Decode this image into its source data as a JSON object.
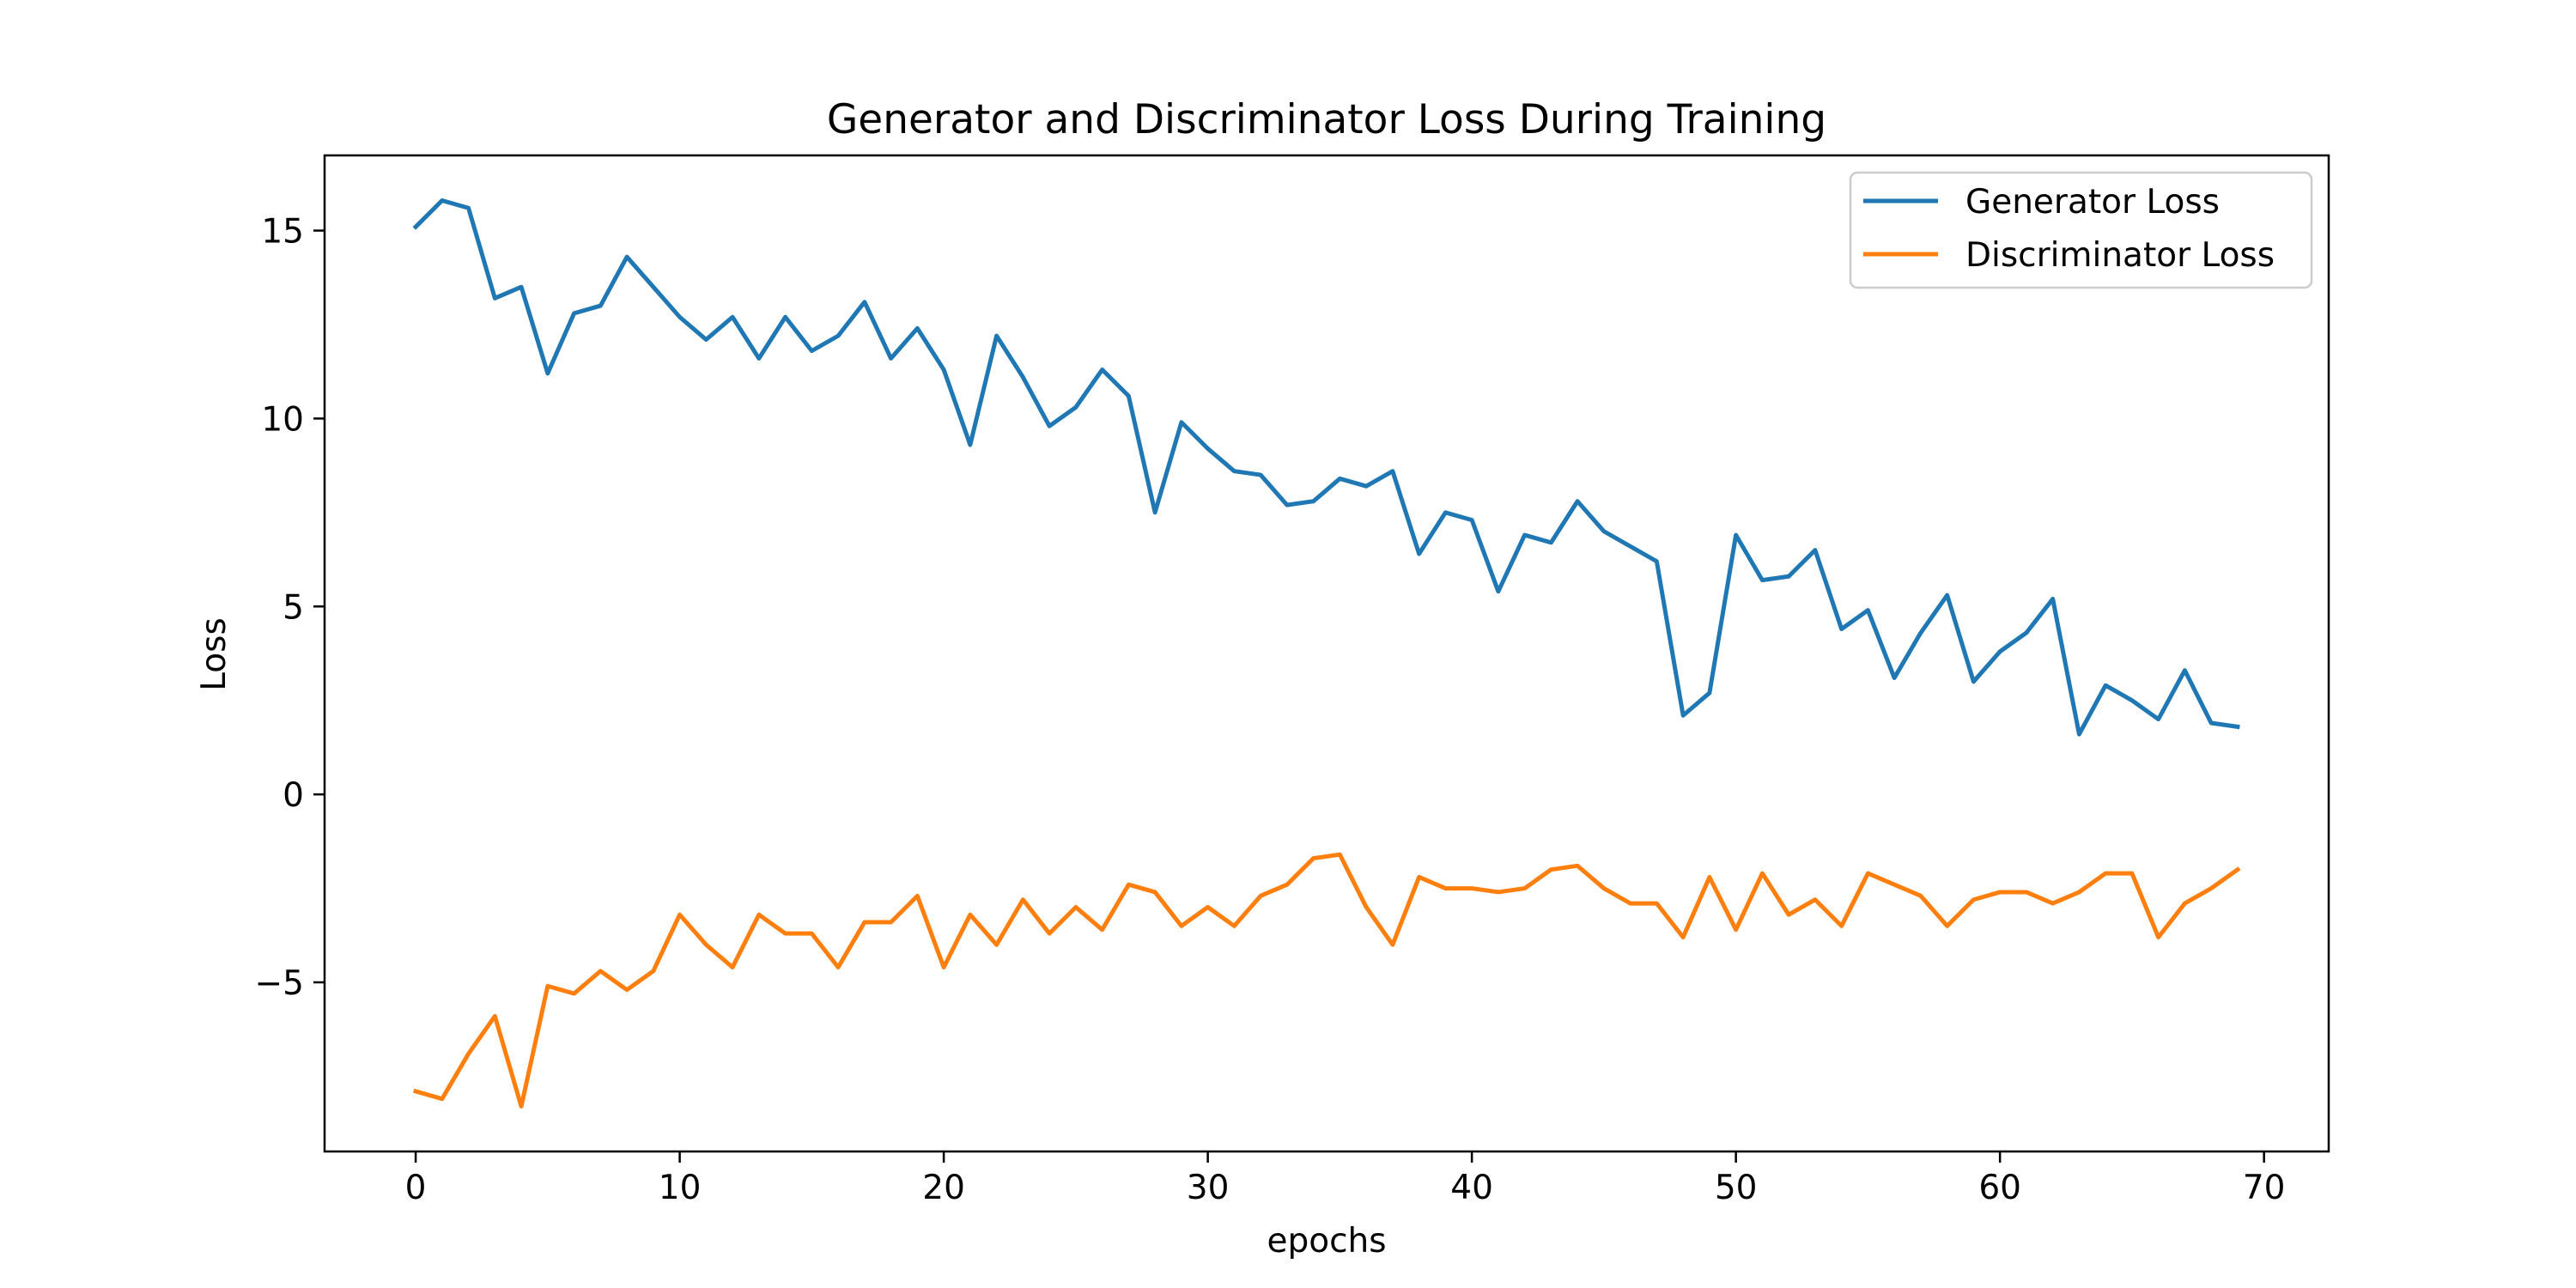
{
  "chart_data": {
    "type": "line",
    "title": "Generator and Discriminator Loss During Training",
    "xlabel": "epochs",
    "ylabel": "Loss",
    "xlim": [
      -3.45,
      72.45
    ],
    "ylim": [
      -9.5,
      17
    ],
    "xticks": [
      0,
      10,
      20,
      30,
      40,
      50,
      60,
      70
    ],
    "yticks": [
      15,
      10,
      5,
      0,
      -5
    ],
    "ytick_labels": [
      "15",
      "10",
      "5",
      "0",
      "−5"
    ],
    "grid": false,
    "legend_position": "top-right",
    "x": [
      0,
      1,
      2,
      3,
      4,
      5,
      6,
      7,
      8,
      9,
      10,
      11,
      12,
      13,
      14,
      15,
      16,
      17,
      18,
      19,
      20,
      21,
      22,
      23,
      24,
      25,
      26,
      27,
      28,
      29,
      30,
      31,
      32,
      33,
      34,
      35,
      36,
      37,
      38,
      39,
      40,
      41,
      42,
      43,
      44,
      45,
      46,
      47,
      48,
      49,
      50,
      51,
      52,
      53,
      54,
      55,
      56,
      57,
      58,
      59,
      60,
      61,
      62,
      63,
      64,
      65,
      66,
      67,
      68,
      69
    ],
    "series": [
      {
        "name": "Generator Loss",
        "color": "#1f77b4",
        "values": [
          15.1,
          15.8,
          15.6,
          13.2,
          13.5,
          11.2,
          12.8,
          13.0,
          14.3,
          13.5,
          12.7,
          12.1,
          12.7,
          11.6,
          12.7,
          11.8,
          12.2,
          13.1,
          11.6,
          12.4,
          11.3,
          9.3,
          12.2,
          11.1,
          9.8,
          10.3,
          11.3,
          10.6,
          7.5,
          9.9,
          9.2,
          8.6,
          8.5,
          7.7,
          7.8,
          8.4,
          8.2,
          8.6,
          6.4,
          7.5,
          7.3,
          5.4,
          6.9,
          6.7,
          7.8,
          7.0,
          6.6,
          6.2,
          2.1,
          2.7,
          6.9,
          5.7,
          5.8,
          6.5,
          4.4,
          4.9,
          3.1,
          4.3,
          5.3,
          3.0,
          3.8,
          4.3,
          5.2,
          1.6,
          2.9,
          2.5,
          2.0,
          3.3,
          1.9,
          1.8
        ]
      },
      {
        "name": "Discriminator Loss",
        "color": "#ff7f0e",
        "values": [
          -7.9,
          -8.1,
          -6.9,
          -5.9,
          -8.3,
          -5.1,
          -5.3,
          -4.7,
          -5.2,
          -4.7,
          -3.2,
          -4.0,
          -4.6,
          -3.2,
          -3.7,
          -3.7,
          -4.6,
          -3.4,
          -3.4,
          -2.7,
          -4.6,
          -3.2,
          -4.0,
          -2.8,
          -3.7,
          -3.0,
          -3.6,
          -2.4,
          -2.6,
          -3.5,
          -3.0,
          -3.5,
          -2.7,
          -2.4,
          -1.7,
          -1.6,
          -3.0,
          -4.0,
          -2.2,
          -2.5,
          -2.5,
          -2.6,
          -2.5,
          -2.0,
          -1.9,
          -2.5,
          -2.9,
          -2.9,
          -3.8,
          -2.2,
          -3.6,
          -2.1,
          -3.2,
          -2.8,
          -3.5,
          -2.1,
          -2.4,
          -2.7,
          -3.5,
          -2.8,
          -2.6,
          -2.6,
          -2.9,
          -2.6,
          -2.1,
          -2.1,
          -3.8,
          -2.9,
          -2.5,
          -2.0
        ]
      }
    ]
  }
}
